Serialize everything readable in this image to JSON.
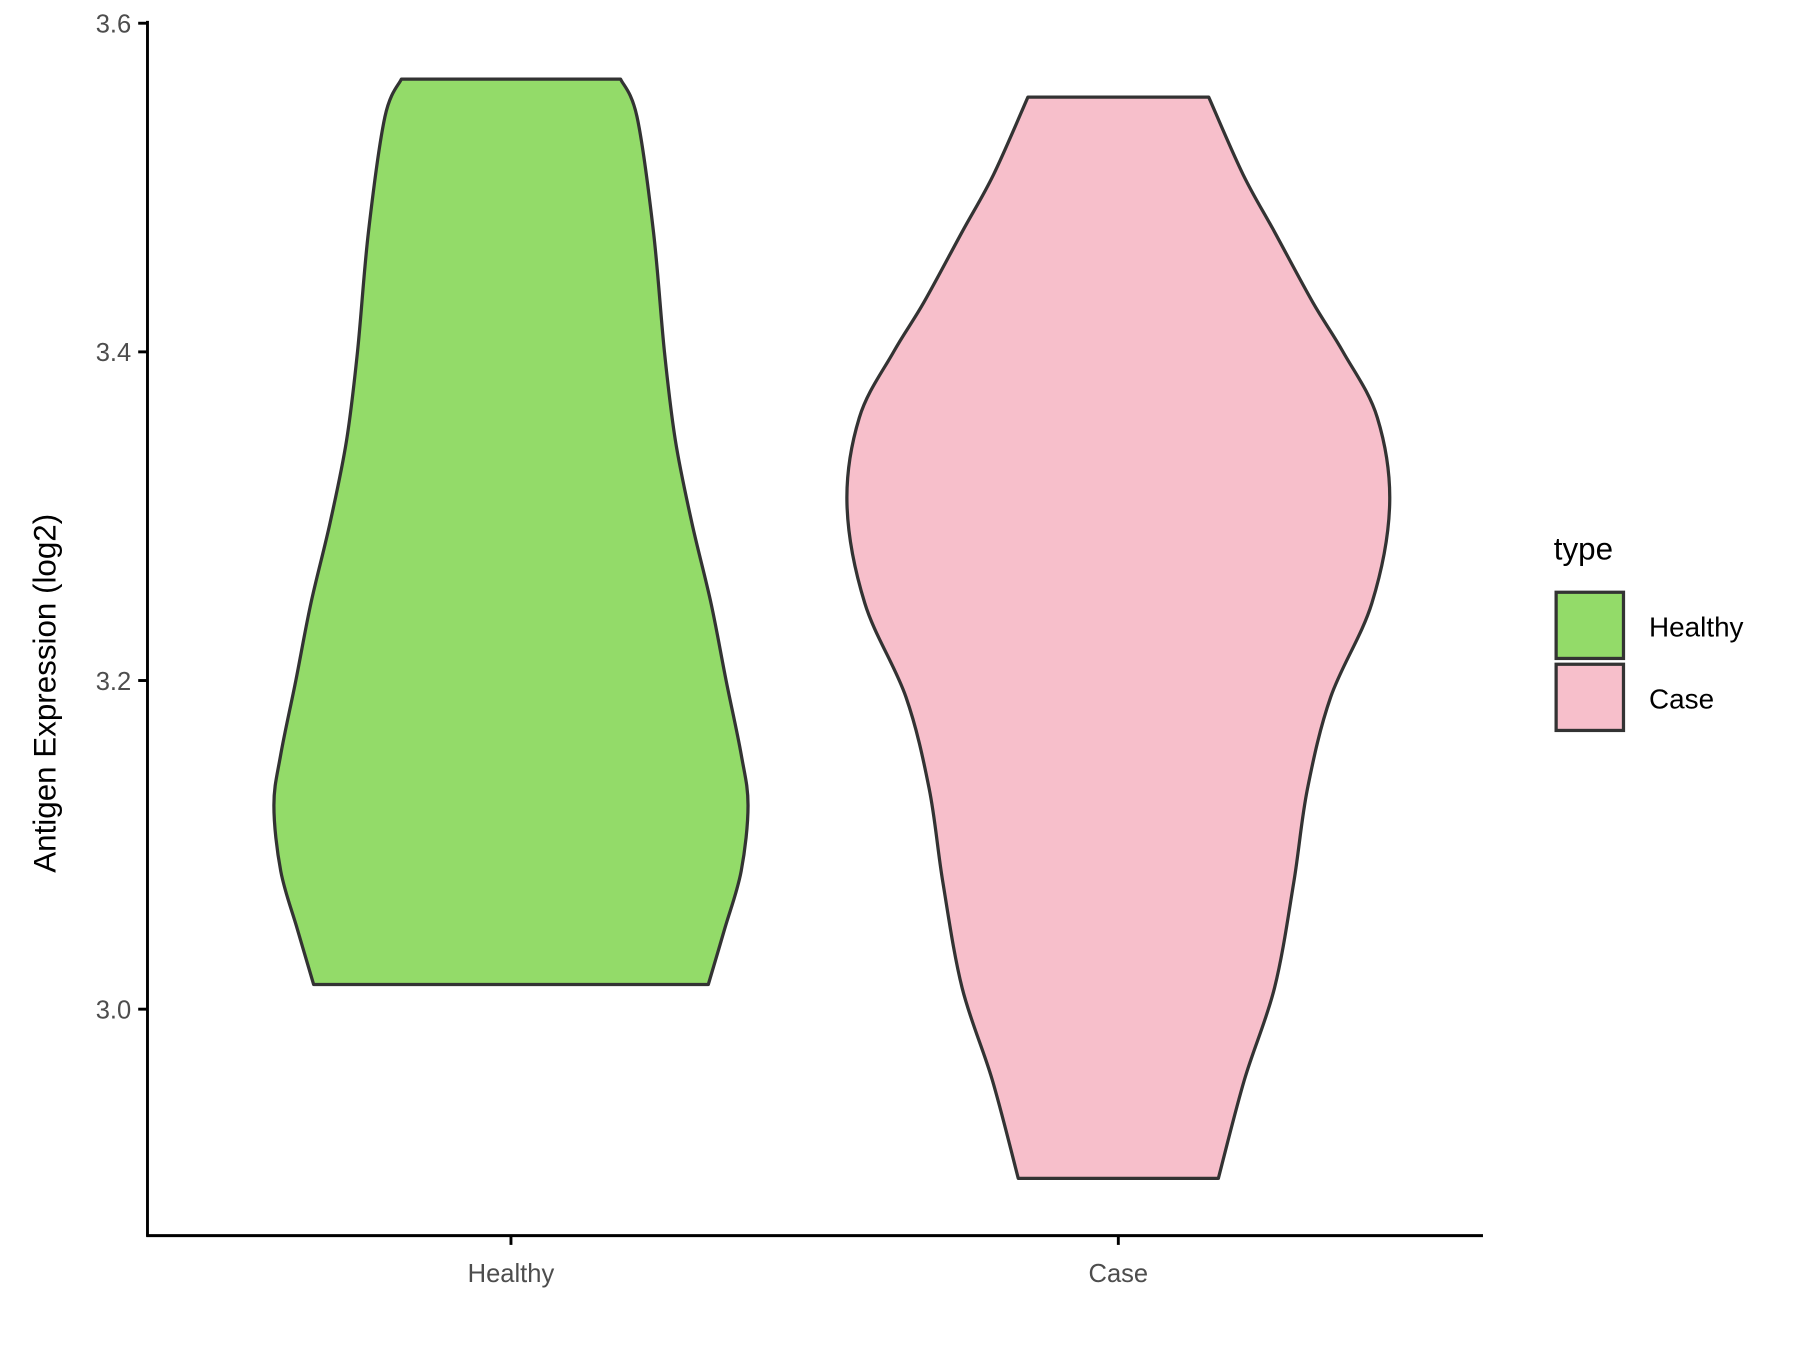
{
  "chart_data": {
    "type": "violin",
    "title": "",
    "xlabel": "",
    "ylabel": "Antigen Expression (log2)",
    "ylim": [
      2.86,
      3.6
    ],
    "y_ticks": [
      "3.0",
      "3.2",
      "3.4",
      "3.6"
    ],
    "y_tick_values": [
      3.0,
      3.2,
      3.4,
      3.6
    ],
    "categories": [
      "Healthy",
      "Case"
    ],
    "grid": false,
    "legend": {
      "title": "type",
      "position": "right",
      "entries": [
        "Healthy",
        "Case"
      ]
    },
    "series": [
      {
        "name": "Healthy",
        "color": "#93DB69",
        "min": 3.015,
        "max": 3.566,
        "density_profile": [
          [
            3.015,
            0.72
          ],
          [
            3.049,
            0.78
          ],
          [
            3.084,
            0.84
          ],
          [
            3.124,
            0.865
          ],
          [
            3.155,
            0.84
          ],
          [
            3.2,
            0.785
          ],
          [
            3.247,
            0.73
          ],
          [
            3.296,
            0.66
          ],
          [
            3.346,
            0.6
          ],
          [
            3.4,
            0.56
          ],
          [
            3.473,
            0.52
          ],
          [
            3.543,
            0.46
          ],
          [
            3.566,
            0.4
          ]
        ]
      },
      {
        "name": "Case",
        "color": "#F7BFCB",
        "min": 2.897,
        "max": 3.555,
        "density_profile": [
          [
            2.897,
            0.365
          ],
          [
            2.957,
            0.46
          ],
          [
            3.013,
            0.57
          ],
          [
            3.077,
            0.64
          ],
          [
            3.134,
            0.69
          ],
          [
            3.19,
            0.775
          ],
          [
            3.247,
            0.925
          ],
          [
            3.307,
            0.99
          ],
          [
            3.36,
            0.945
          ],
          [
            3.4,
            0.82
          ],
          [
            3.43,
            0.71
          ],
          [
            3.473,
            0.57
          ],
          [
            3.508,
            0.455
          ],
          [
            3.555,
            0.33
          ]
        ]
      }
    ]
  }
}
